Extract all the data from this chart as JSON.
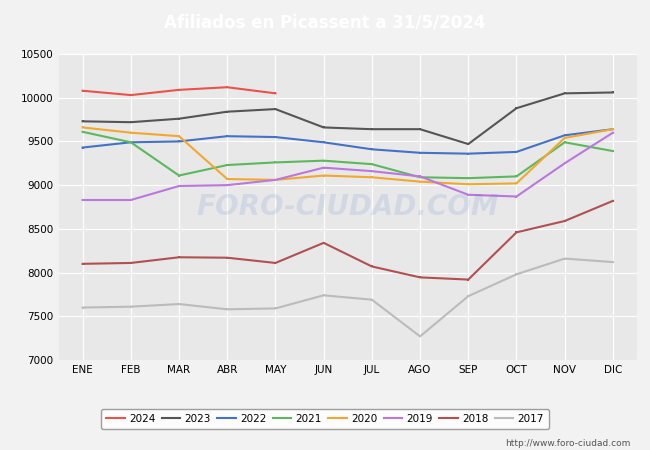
{
  "title": "Afiliados en Picassent a 31/5/2024",
  "title_bg": "#5b9bd5",
  "xlabel": "",
  "ylabel": "",
  "months": [
    "ENE",
    "FEB",
    "MAR",
    "ABR",
    "MAY",
    "JUN",
    "JUL",
    "AGO",
    "SEP",
    "OCT",
    "NOV",
    "DIC"
  ],
  "ylim": [
    7000,
    10500
  ],
  "yticks": [
    7000,
    7500,
    8000,
    8500,
    9000,
    9500,
    10000,
    10500
  ],
  "series_data": {
    "2024": [
      10080,
      10030,
      10090,
      10120,
      10050,
      null,
      null,
      null,
      null,
      null,
      null,
      null
    ],
    "2023": [
      9730,
      9720,
      9760,
      9840,
      9870,
      9660,
      9640,
      9640,
      9470,
      9880,
      10050,
      10060
    ],
    "2022": [
      9430,
      9490,
      9500,
      9560,
      9550,
      9490,
      9410,
      9370,
      9360,
      9380,
      9570,
      9640
    ],
    "2021": [
      9610,
      9490,
      9110,
      9230,
      9260,
      9280,
      9240,
      9090,
      9080,
      9100,
      9490,
      9390
    ],
    "2020": [
      9660,
      9600,
      9560,
      9070,
      9060,
      9110,
      9090,
      9040,
      9010,
      9020,
      9540,
      9640
    ],
    "2019": [
      8830,
      8830,
      8990,
      9000,
      9060,
      9200,
      9160,
      9100,
      8890,
      8870,
      9250,
      9600
    ],
    "2018": [
      8100,
      8110,
      8175,
      8170,
      8110,
      8340,
      8070,
      7945,
      7920,
      8460,
      8590,
      8820
    ],
    "2017": [
      7600,
      7610,
      7640,
      7580,
      7590,
      7740,
      7690,
      7270,
      7730,
      7980,
      8160,
      8120
    ]
  },
  "colors": {
    "2024": "#e8534a",
    "2023": "#555555",
    "2022": "#4472c4",
    "2021": "#5cb85c",
    "2020": "#f0a830",
    "2019": "#bb77dd",
    "2018": "#b05050",
    "2017": "#bbbbbb"
  },
  "legend_order": [
    "2024",
    "2023",
    "2022",
    "2021",
    "2020",
    "2019",
    "2018",
    "2017"
  ],
  "watermark": "FORO-CIUDAD.COM",
  "url": "http://www.foro-ciudad.com",
  "bg_color": "#f2f2f2",
  "plot_bg_color": "#e8e8e8",
  "grid_color": "#ffffff"
}
